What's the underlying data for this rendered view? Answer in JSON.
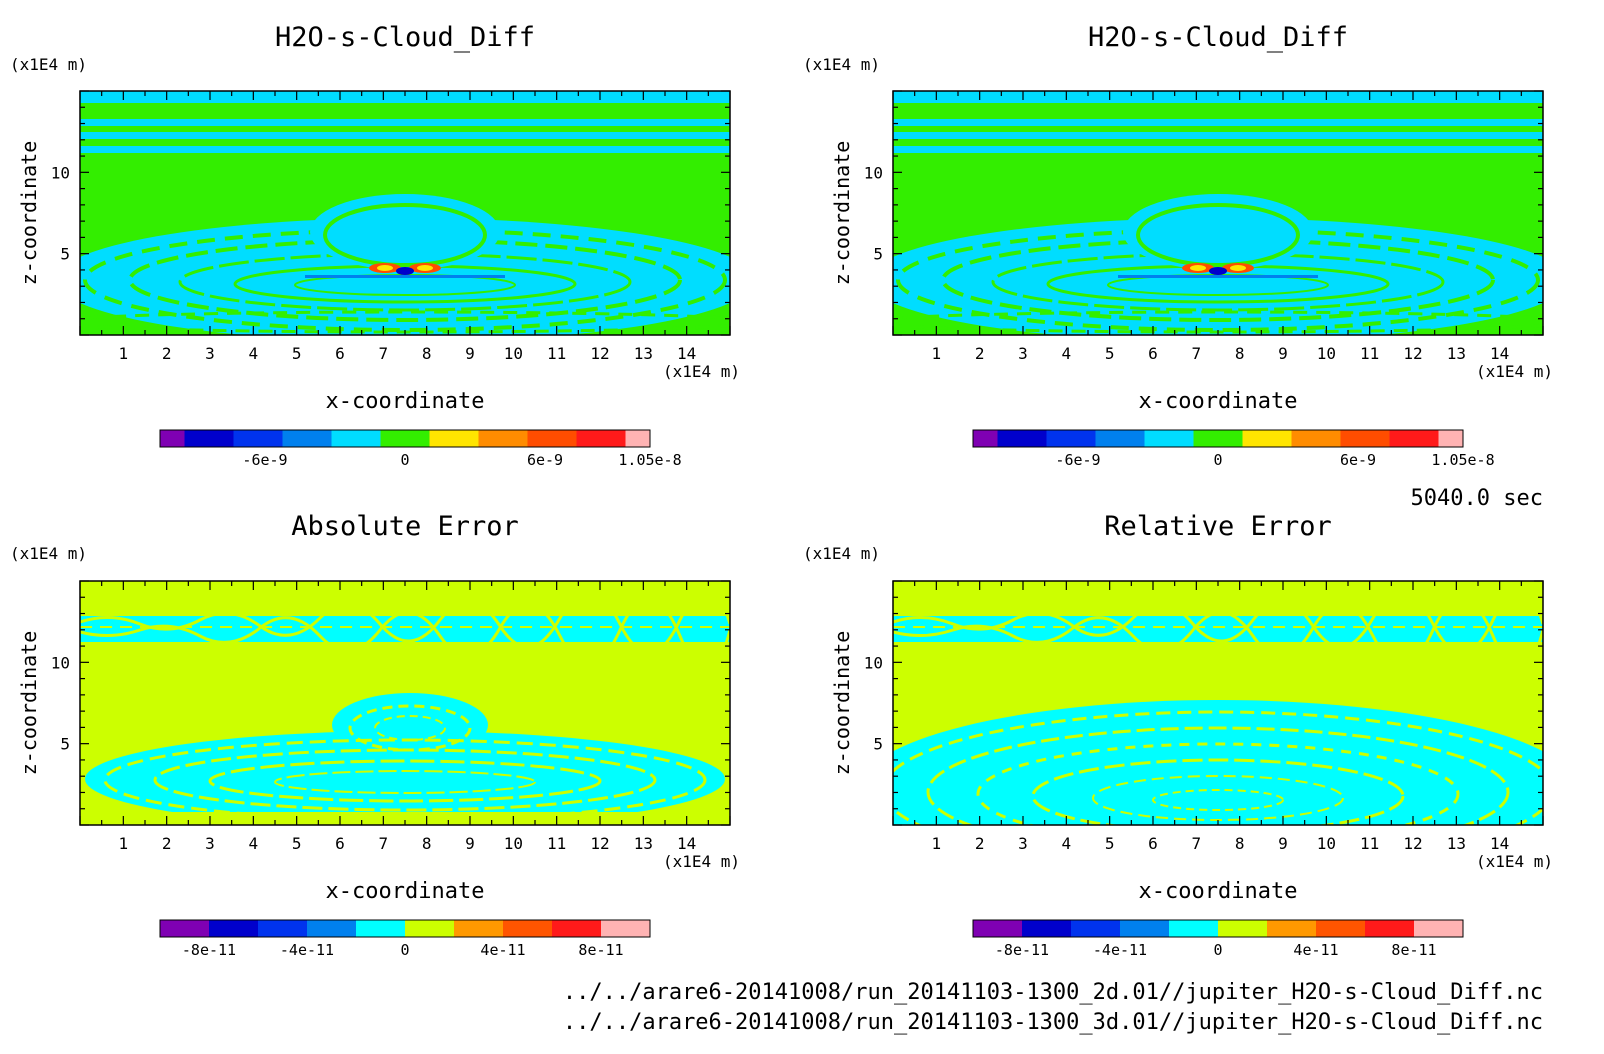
{
  "chart_data": [
    {
      "type": "heatmap",
      "title": "H2O-s-Cloud_Diff",
      "xlabel": "x-coordinate",
      "ylabel": "z-coordinate",
      "x_unit": "(x1E4 m)",
      "y_unit": "(x1E4 m)",
      "xlim": [
        0,
        15
      ],
      "ylim": [
        0,
        15
      ],
      "x_ticks": [
        1,
        2,
        3,
        4,
        5,
        6,
        7,
        8,
        9,
        10,
        11,
        12,
        13,
        14
      ],
      "y_ticks": [
        5,
        10
      ],
      "background_value": "0",
      "colorbar": {
        "colors": [
          "#7f00b3",
          "#0000cc",
          "#0033ee",
          "#0080ee",
          "#00ddff",
          "#33ee00",
          "#ffe500",
          "#ff8c00",
          "#ff4d00",
          "#ff1a1a",
          "#ffb3b3"
        ],
        "tick_labels": [
          "-6e-9",
          "0",
          "6e-9",
          "1.05e-8"
        ],
        "tick_values": [
          -6e-09,
          0,
          6e-09,
          1.05e-08
        ],
        "min": -1.05e-08,
        "max": 1.05e-08
      }
    },
    {
      "type": "heatmap",
      "title": "H2O-s-Cloud_Diff",
      "xlabel": "x-coordinate",
      "ylabel": "z-coordinate",
      "x_unit": "(x1E4 m)",
      "y_unit": "(x1E4 m)",
      "xlim": [
        0,
        15
      ],
      "ylim": [
        0,
        15
      ],
      "x_ticks": [
        1,
        2,
        3,
        4,
        5,
        6,
        7,
        8,
        9,
        10,
        11,
        12,
        13,
        14
      ],
      "y_ticks": [
        5,
        10
      ],
      "colorbar": {
        "colors": [
          "#7f00b3",
          "#0000cc",
          "#0033ee",
          "#0080ee",
          "#00ddff",
          "#33ee00",
          "#ffe500",
          "#ff8c00",
          "#ff4d00",
          "#ff1a1a",
          "#ffb3b3"
        ],
        "tick_labels": [
          "-6e-9",
          "0",
          "6e-9",
          "1.05e-8"
        ],
        "tick_values": [
          -6e-09,
          0,
          6e-09,
          1.05e-08
        ],
        "min": -1.05e-08,
        "max": 1.05e-08
      }
    },
    {
      "type": "heatmap",
      "title": "Absolute Error",
      "xlabel": "x-coordinate",
      "ylabel": "z-coordinate",
      "x_unit": "(x1E4 m)",
      "y_unit": "(x1E4 m)",
      "xlim": [
        0,
        15
      ],
      "ylim": [
        0,
        15
      ],
      "x_ticks": [
        1,
        2,
        3,
        4,
        5,
        6,
        7,
        8,
        9,
        10,
        11,
        12,
        13,
        14
      ],
      "y_ticks": [
        5,
        10
      ],
      "colorbar": {
        "colors": [
          "#7f00b3",
          "#0000cc",
          "#0033ee",
          "#0080ee",
          "#00ffff",
          "#ccff00",
          "#ff9900",
          "#ff5500",
          "#ff1a1a",
          "#ffb3b3"
        ],
        "tick_labels": [
          "-8e-11",
          "-4e-11",
          "0",
          "4e-11",
          "8e-11"
        ],
        "tick_values": [
          -8e-11,
          -4e-11,
          0,
          4e-11,
          8e-11
        ],
        "min": -1e-10,
        "max": 1e-10
      }
    },
    {
      "type": "heatmap",
      "title": "Relative Error",
      "xlabel": "x-coordinate",
      "ylabel": "z-coordinate",
      "x_unit": "(x1E4 m)",
      "y_unit": "(x1E4 m)",
      "xlim": [
        0,
        15
      ],
      "ylim": [
        0,
        15
      ],
      "x_ticks": [
        1,
        2,
        3,
        4,
        5,
        6,
        7,
        8,
        9,
        10,
        11,
        12,
        13,
        14
      ],
      "y_ticks": [
        5,
        10
      ],
      "colorbar": {
        "colors": [
          "#7f00b3",
          "#0000cc",
          "#0033ee",
          "#0080ee",
          "#00ffff",
          "#ccff00",
          "#ff9900",
          "#ff5500",
          "#ff1a1a",
          "#ffb3b3"
        ],
        "tick_labels": [
          "-8e-11",
          "-4e-11",
          "0",
          "4e-11",
          "8e-11"
        ],
        "tick_values": [
          -8e-11,
          -4e-11,
          0,
          4e-11,
          8e-11
        ],
        "min": -1e-10,
        "max": 1e-10
      }
    }
  ],
  "time_label": "5040.0 sec",
  "file_lines": [
    "../../arare6-20141008/run_20141103-1300_2d.01//jupiter_H2O-s-Cloud_Diff.nc",
    "../../arare6-20141008/run_20141103-1300_3d.01//jupiter_H2O-s-Cloud_Diff.nc"
  ]
}
